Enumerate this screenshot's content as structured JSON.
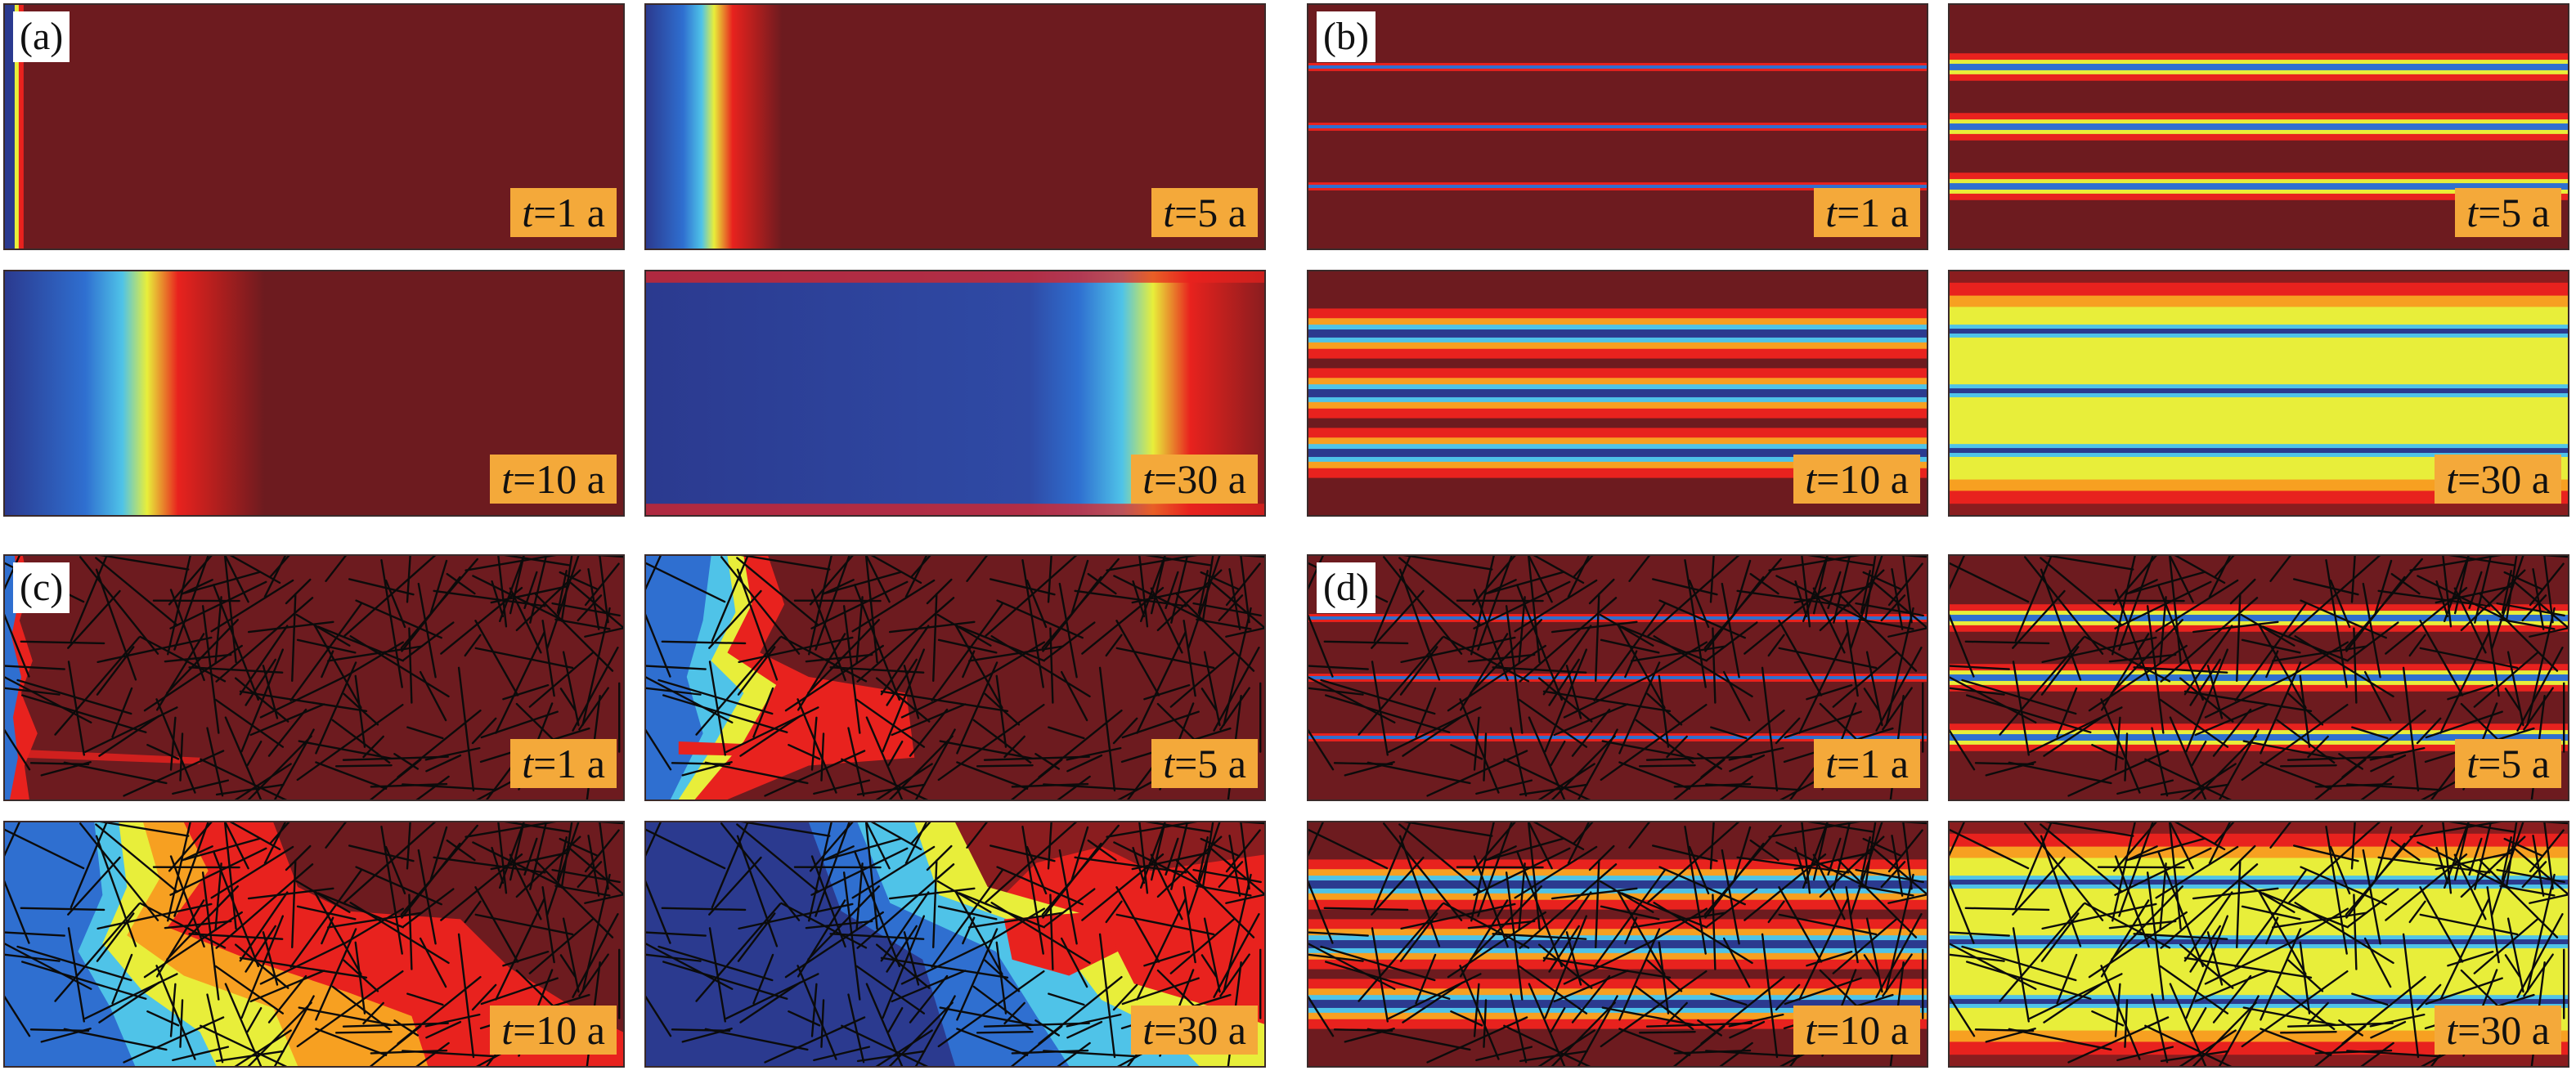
{
  "figure": {
    "groups": [
      {
        "id": "a",
        "label": "(a)",
        "fractured": false,
        "pattern": "front"
      },
      {
        "id": "b",
        "label": "(b)",
        "fractured": false,
        "pattern": "channels"
      },
      {
        "id": "c",
        "label": "(c)",
        "fractured": true,
        "pattern": "front"
      },
      {
        "id": "d",
        "label": "(d)",
        "fractured": true,
        "pattern": "channels"
      }
    ],
    "times": [
      {
        "value": "t",
        "suffix": "=1 a"
      },
      {
        "value": "t",
        "suffix": "=5 a"
      },
      {
        "value": "t",
        "suffix": "=10 a"
      },
      {
        "value": "t",
        "suffix": "=30 a"
      }
    ],
    "colormap": [
      "#2b3a8f",
      "#2f6fd0",
      "#4fc3e8",
      "#e8ee3a",
      "#f7a021",
      "#e8221e",
      "#6d1b1f"
    ]
  }
}
